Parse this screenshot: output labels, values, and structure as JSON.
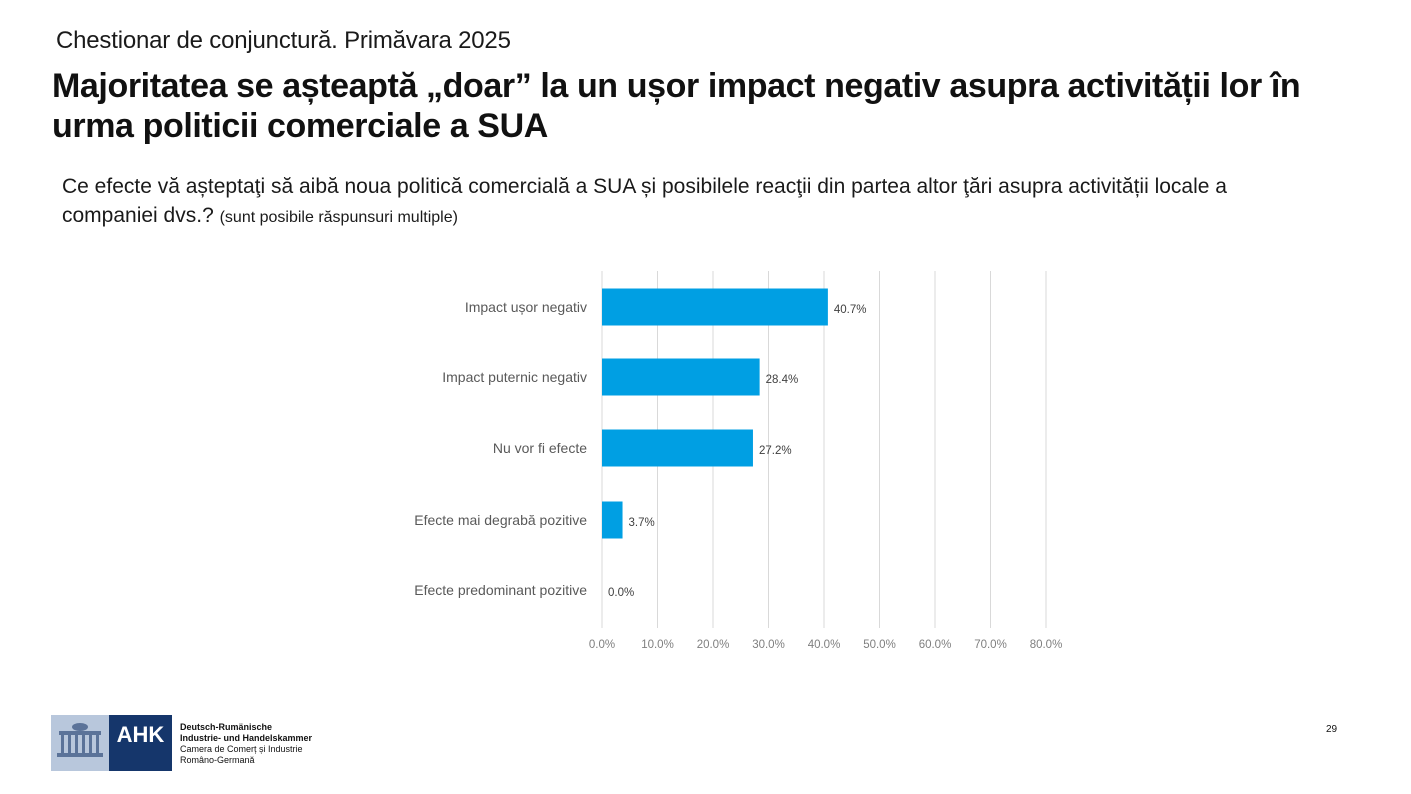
{
  "header": {
    "subtitle": "Chestionar de conjunctură. Primăvara 2025",
    "title": "Majoritatea se așteaptă „doar” la un ușor impact negativ asupra activității lor în urma politicii comerciale a SUA"
  },
  "question": {
    "text": "Ce efecte vă așteptaţi să aibă noua politică comercială a SUA și posibilele reacţii din partea altor ţări asupra activității locale a companiei dvs.?",
    "note": "(sunt posibile răspunsuri multiple)"
  },
  "colors": {
    "bar": "#009fe3",
    "grid": "#d9d9d9",
    "logo_navy": "#15366b"
  },
  "chart_data": {
    "type": "bar",
    "orientation": "horizontal",
    "categories": [
      "Impact ușor negativ",
      "Impact puternic negativ",
      "Nu vor fi efecte",
      "Efecte mai degrabă pozitive",
      "Efecte predominant pozitive"
    ],
    "values": [
      40.7,
      28.4,
      27.2,
      3.7,
      0.0
    ],
    "value_labels": [
      "40.7%",
      "28.4%",
      "27.2%",
      "3.7%",
      "0.0%"
    ],
    "xlim": [
      0,
      80
    ],
    "x_ticks": [
      "0.0%",
      "10.0%",
      "20.0%",
      "30.0%",
      "40.0%",
      "50.0%",
      "60.0%",
      "70.0%",
      "80.0%"
    ],
    "grid": true,
    "legend": "none"
  },
  "footer": {
    "logo_text": "AHK",
    "logo_icon": "building-emblem-icon",
    "org_lines": [
      "Deutsch-Rumänische",
      "Industrie- und Handelskammer",
      "Camera de Comerț și Industrie",
      "Româno-Germană"
    ],
    "page_number": "29"
  }
}
